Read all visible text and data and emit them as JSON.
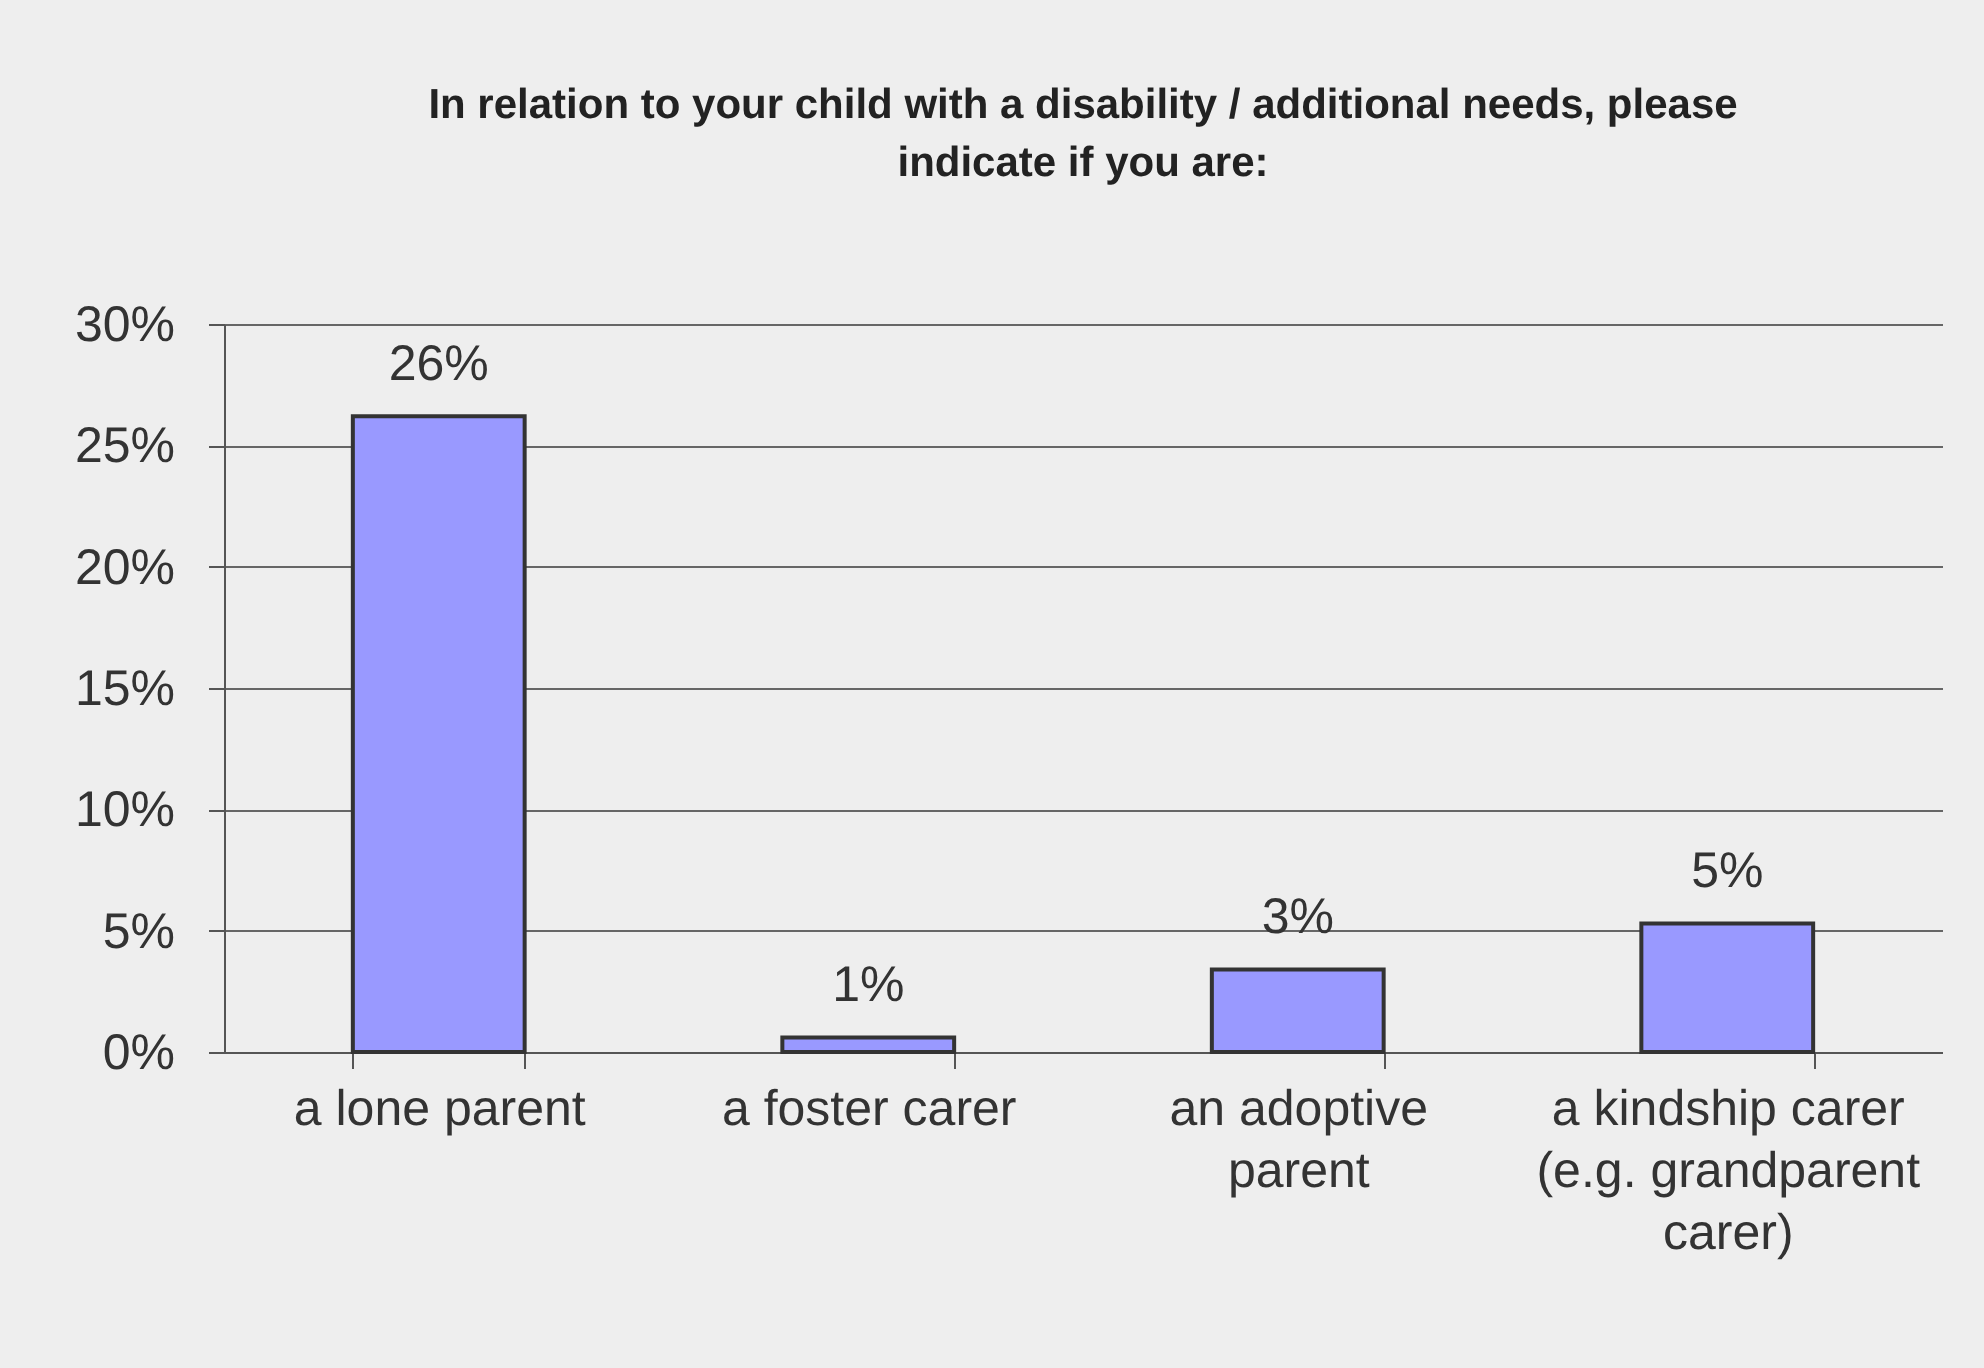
{
  "chart_data": {
    "type": "bar",
    "title": "In relation to your child with a disability / additional needs, please indicate if you are:",
    "categories": [
      "a lone parent",
      "a foster carer",
      "an adoptive parent",
      "a kindship carer (e.g. grandparent carer)"
    ],
    "values": [
      26.2,
      0.6,
      3.4,
      5.3
    ],
    "value_labels": [
      "26%",
      "1%",
      "3%",
      "5%"
    ],
    "color": "#9999ff",
    "ylim": [
      0,
      30
    ],
    "yticks": [
      {
        "value": 0,
        "label": "0%"
      },
      {
        "value": 5,
        "label": "5%"
      },
      {
        "value": 10,
        "label": "10%"
      },
      {
        "value": 15,
        "label": "15%"
      },
      {
        "value": 20,
        "label": "20%"
      },
      {
        "value": 25,
        "label": "25%"
      },
      {
        "value": 30,
        "label": "30%"
      }
    ],
    "grid": "y"
  }
}
